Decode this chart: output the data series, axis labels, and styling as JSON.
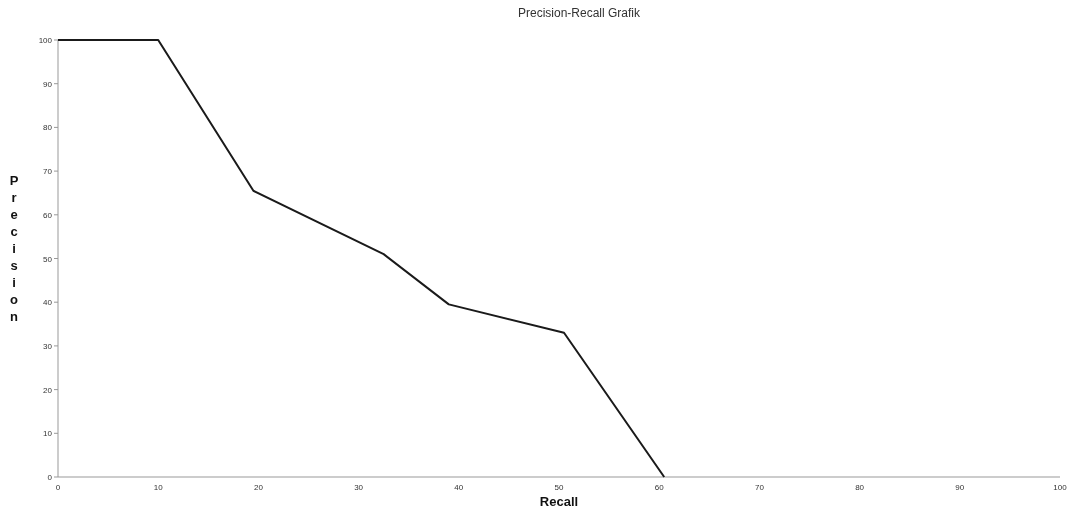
{
  "chart_data": {
    "type": "line",
    "title": "Precision-Recall Grafik",
    "xlabel": "Recall",
    "ylabel": "Precision",
    "xlim": [
      0,
      100
    ],
    "xticks": [
      0,
      10,
      20,
      30,
      40,
      50,
      60,
      70,
      80,
      90,
      100
    ],
    "ylim": [
      0,
      100
    ],
    "yticks": [
      0,
      10,
      20,
      30,
      40,
      50,
      60,
      70,
      80,
      90,
      100
    ],
    "marker": "none",
    "line_style": "solid",
    "series": [
      {
        "color": "#1a1a1a",
        "x": [
          0,
          10,
          19.5,
          32.5,
          39,
          50.5,
          60.5
        ],
        "values": [
          100,
          100,
          65.5,
          51,
          39.5,
          33,
          0
        ]
      }
    ]
  }
}
